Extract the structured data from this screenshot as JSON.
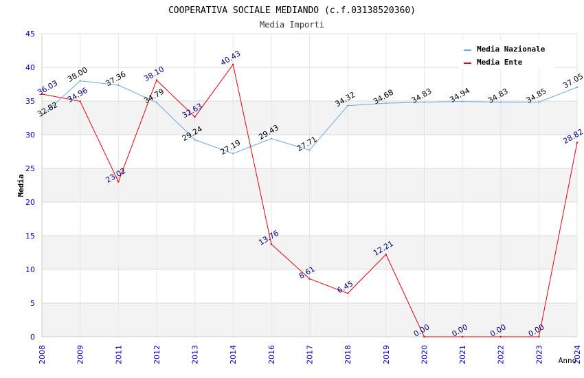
{
  "chart_data": {
    "type": "line",
    "title": "COOPERATIVA SOCIALE MEDIANDO (c.f.03138520360)",
    "subtitle": "Media Importi",
    "xlabel": "Anno",
    "ylabel": "Media",
    "ylim": [
      0,
      45
    ],
    "yticks": [
      "0",
      "5",
      "10",
      "15",
      "20",
      "25",
      "30",
      "35",
      "40",
      "45"
    ],
    "categories": [
      "2008",
      "2009",
      "2011",
      "2012",
      "2013",
      "2014",
      "2016",
      "2017",
      "2018",
      "2019",
      "2020",
      "2021",
      "2022",
      "2023",
      "2024"
    ],
    "series": [
      {
        "name": "Media Nazionale",
        "color": "#6aaae6",
        "label_color": "#000000",
        "values": [
          32.82,
          38.0,
          37.36,
          34.79,
          29.24,
          27.19,
          29.43,
          27.71,
          34.32,
          34.68,
          34.83,
          34.94,
          34.83,
          34.85,
          37.05
        ],
        "labels": [
          "32.82",
          "38.00",
          "37.36",
          "34.79",
          "29.24",
          "27.19",
          "29.43",
          "27.71",
          "34.32",
          "34.68",
          "34.83",
          "34.94",
          "34.83",
          "34.85",
          "37.05"
        ]
      },
      {
        "name": "Media Ente",
        "color": "#e8000f",
        "label_color": "#000080",
        "values": [
          36.03,
          34.96,
          23.02,
          38.1,
          32.63,
          40.43,
          13.76,
          8.61,
          6.45,
          12.21,
          0.0,
          0.0,
          0.0,
          0.0,
          28.82
        ],
        "labels": [
          "36.03",
          "34.96",
          "23.02",
          "38.10",
          "32.63",
          "40.43",
          "13.76",
          "8.61",
          "6.45",
          "12.21",
          "0.00",
          "0.00",
          "0.00",
          "0.00",
          "28.82"
        ]
      }
    ],
    "legend_position": "top-right",
    "grid": true
  }
}
